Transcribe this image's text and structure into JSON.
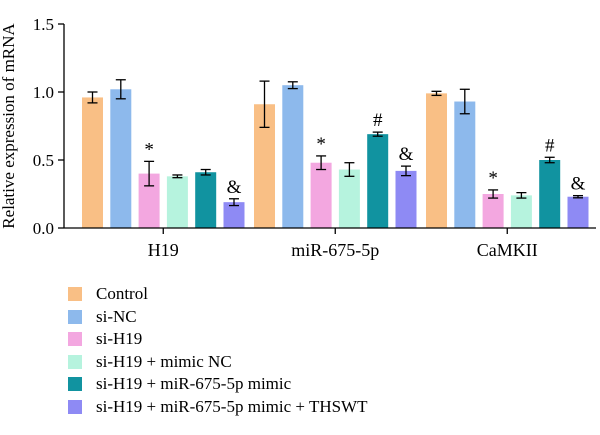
{
  "colors": {
    "Control": "#F9BF85",
    "si-NC": "#8DB9EC",
    "si-H19": "#F3A7E0",
    "si-H19 + mimic NC": "#B6F3DE",
    "si-H19 + miR-675-5p mimic": "#1193A0",
    "si-H19 + miR-675-5p mimic + THSWT": "#8E8AF4"
  },
  "chart_data": {
    "type": "bar",
    "ylabel": "Relative expression of mRNA",
    "ylim": [
      0,
      1.5
    ],
    "yticks": [
      "0.0",
      "0.5",
      "1.0",
      "1.5"
    ],
    "categories": [
      "H19",
      "miR-675-5p",
      "CaMKII"
    ],
    "legend_position": "bottom-left",
    "series": [
      {
        "name": "Control",
        "values": [
          0.96,
          0.91,
          0.99
        ],
        "errors": [
          0.04,
          0.17,
          0.015
        ]
      },
      {
        "name": "si-NC",
        "values": [
          1.02,
          1.05,
          0.93
        ],
        "errors": [
          0.07,
          0.025,
          0.09
        ]
      },
      {
        "name": "si-H19",
        "values": [
          0.4,
          0.48,
          0.25
        ],
        "errors": [
          0.09,
          0.05,
          0.03
        ],
        "annotations": [
          "*",
          "*",
          "*"
        ]
      },
      {
        "name": "si-H19 + mimic NC",
        "values": [
          0.38,
          0.43,
          0.24
        ],
        "errors": [
          0.01,
          0.05,
          0.02
        ]
      },
      {
        "name": "si-H19 + miR-675-5p mimic",
        "values": [
          0.41,
          0.69,
          0.5
        ],
        "errors": [
          0.02,
          0.015,
          0.02
        ],
        "annotations": [
          "",
          "#",
          "#"
        ]
      },
      {
        "name": "si-H19 + miR-675-5p mimic + THSWT",
        "values": [
          0.19,
          0.42,
          0.23
        ],
        "errors": [
          0.025,
          0.035,
          0.008
        ],
        "annotations": [
          "&",
          "&",
          "&"
        ]
      }
    ]
  }
}
